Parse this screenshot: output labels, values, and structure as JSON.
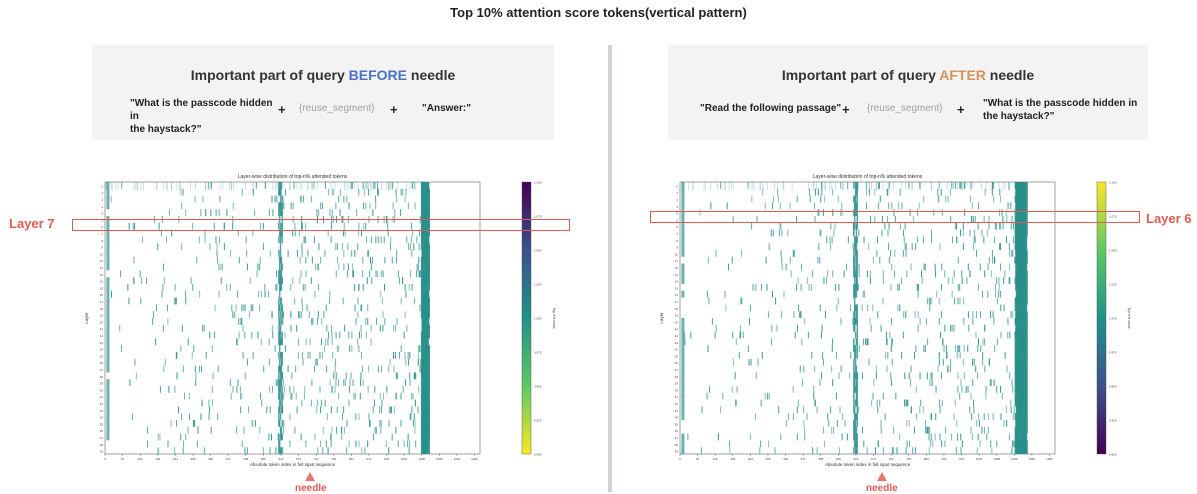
{
  "title": "Top 10% attention score tokens(vertical pattern)",
  "left_box": {
    "heading_pre": "Important part of query ",
    "heading_em": "BEFORE",
    "heading_post": " needle",
    "parts": [
      "\"What is the passcode hidden in",
      "the haystack?\"",
      "{reuse_segment}",
      "\"Answer:\""
    ],
    "plus": "+"
  },
  "right_box": {
    "heading_pre": "Important part of query ",
    "heading_em": "AFTER",
    "heading_post": " needle",
    "parts": [
      "\"Read the following passage\"",
      "{reuse_segment}",
      "\"What is the passcode hidden in",
      "the haystack?\""
    ],
    "plus": "+"
  },
  "annotations": {
    "left_layer": "Layer 7",
    "right_layer": "Layer 6",
    "needle": "needle"
  },
  "colors": {
    "accent_red": "#de5a52",
    "before_blue": "#4a72c4",
    "after_orange": "#d6915b",
    "heat_teal": "#2a8f8b",
    "box_bg": "#f3f3f3",
    "divider": "#cfd3d8"
  },
  "chart_data": [
    {
      "type": "heatmap",
      "title": "Layer-wise distribution of top-n% attended tokens",
      "xlabel": "Absolute token index in full input sequence",
      "ylabel": "Layer",
      "colorbar_label": "Top-n% mask",
      "colorscale": "viridis_r",
      "colorbar_ticks": [
        "1.100",
        "1.075",
        "1.050",
        "1.025",
        "1.000",
        "0.975",
        "0.950",
        "0.925",
        "0.900"
      ],
      "x_range": [
        0,
        1300
      ],
      "x_ticks": [
        0,
        61,
        122,
        183,
        244,
        305,
        366,
        427,
        488,
        549,
        610,
        671,
        732,
        793,
        854,
        915,
        976,
        1037,
        1098,
        1159,
        1220,
        1281
      ],
      "layers": 40,
      "highlight_layer": 7,
      "needle_x": 610,
      "dense_band": [
        1095,
        1120
      ],
      "mid_band": [
        600,
        615
      ],
      "legend": "none",
      "grid": false
    },
    {
      "type": "heatmap",
      "title": "Layer-wise distribution of top-n% attended tokens",
      "xlabel": "Absolute token index in full input sequence",
      "ylabel": "Layer",
      "colorbar_label": "Top-n% mask",
      "colorscale": "viridis",
      "colorbar_ticks": [
        "1.100",
        "1.075",
        "1.050",
        "1.025",
        "1.000",
        "0.975",
        "0.950",
        "0.925",
        "0.900"
      ],
      "x_range": [
        0,
        1300
      ],
      "x_ticks": [
        0,
        61,
        122,
        183,
        244,
        305,
        366,
        427,
        488,
        549,
        610,
        671,
        732,
        793,
        854,
        915,
        976,
        1037,
        1098,
        1159,
        1220,
        1281
      ],
      "layers": 40,
      "highlight_layer": 6,
      "needle_x": 610,
      "dense_band": [
        1160,
        1200
      ],
      "mid_band": [
        600,
        615
      ],
      "legend": "none",
      "grid": false
    }
  ]
}
